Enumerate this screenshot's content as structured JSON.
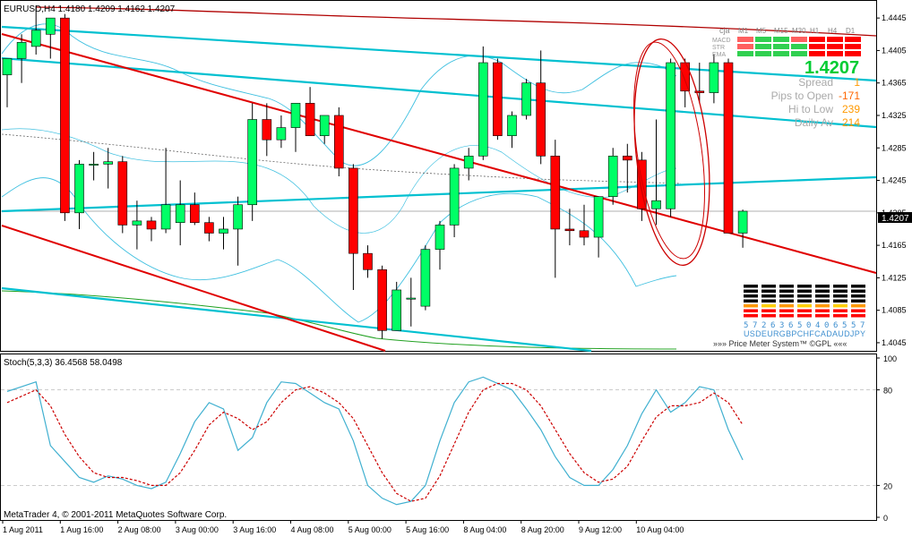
{
  "header": {
    "price_title": "EURUSD,H4  1.4180 1.4209 1.4162 1.4207",
    "stoch_title": "Stoch(5,3,3) 36.4568 58.0498",
    "copyright": "MetaTrader 4, © 2001-2011 MetaQuotes Software Corp."
  },
  "colors": {
    "bull": "#00ff66",
    "bear": "#ff0000",
    "channel": "#e00000",
    "trend": "#00c0d0",
    "band": "#40c0e0",
    "envelope": "#b00000",
    "ma": "#20a020",
    "stoch_main": "#40b0d0",
    "stoch_signal": "#cc0000"
  },
  "price_axis": {
    "ticks": [
      "1.4445",
      "1.4405",
      "1.4365",
      "1.4325",
      "1.4285",
      "1.4245",
      "1.4205",
      "1.4165",
      "1.4125",
      "1.4085",
      "1.4045"
    ],
    "current_price": "1.4207"
  },
  "stoch_axis": {
    "ticks": [
      "100",
      "80",
      "20",
      "0"
    ]
  },
  "time_axis": {
    "labels": [
      "1 Aug 2011",
      "1 Aug 16:00",
      "2 Aug 08:00",
      "3 Aug 00:00",
      "3 Aug 16:00",
      "4 Aug 08:00",
      "5 Aug 00:00",
      "5 Aug 16:00",
      "8 Aug 04:00",
      "8 Aug 20:00",
      "9 Aug 12:00",
      "10 Aug 04:00"
    ]
  },
  "indicator_panel": {
    "label": "cja",
    "timeframes": [
      "M1",
      "M5",
      "M15",
      "M30",
      "H1",
      "H4",
      "D1"
    ],
    "rows": [
      {
        "name": "MACD",
        "colors": [
          "#ff6060",
          "#30d050",
          "#30d050",
          "#ff6060",
          "#ff0000",
          "#ff0000",
          "#ff0000"
        ]
      },
      {
        "name": "STR",
        "colors": [
          "#ff6060",
          "#30d050",
          "#30d050",
          "#30d050",
          "#ff0000",
          "#ff0000",
          "#ff0000"
        ]
      },
      {
        "name": "EMA",
        "colors": [
          "#30d050",
          "#30d050",
          "#30d050",
          "#30d050",
          "#ff0000",
          "#ff0000",
          "#ff0000"
        ]
      }
    ],
    "big_price": "1.4207",
    "stats": [
      {
        "label": "Spread",
        "value": "1"
      },
      {
        "label": "Pips to Open",
        "value": "-171"
      },
      {
        "label": "Hi to Low",
        "value": "239"
      },
      {
        "label": "Daily Av",
        "value": "214"
      }
    ]
  },
  "price_meter": {
    "values": [
      "5",
      "7",
      "2",
      "6",
      "3",
      "6",
      "5",
      "0",
      "4",
      "0",
      "6",
      "5",
      "5",
      "7"
    ],
    "currencies": "USDEURGBPCHFCADAUDJPY",
    "caption": "»»» Price Meter System™ ©GPL «««"
  },
  "chart_data": {
    "type": "candlestick",
    "symbol": "EURUSD",
    "timeframe": "H4",
    "ylim": [
      1.4035,
      1.4465
    ],
    "candles": [
      {
        "o": 1.4375,
        "h": 1.4395,
        "l": 1.4335,
        "c": 1.4395
      },
      {
        "o": 1.4395,
        "h": 1.4425,
        "l": 1.4365,
        "c": 1.4415
      },
      {
        "o": 1.441,
        "h": 1.446,
        "l": 1.44,
        "c": 1.443
      },
      {
        "o": 1.4425,
        "h": 1.4445,
        "l": 1.4395,
        "c": 1.4445
      },
      {
        "o": 1.4445,
        "h": 1.445,
        "l": 1.4195,
        "c": 1.4205
      },
      {
        "o": 1.4205,
        "h": 1.427,
        "l": 1.4185,
        "c": 1.4265
      },
      {
        "o": 1.4265,
        "h": 1.428,
        "l": 1.4245,
        "c": 1.4265
      },
      {
        "o": 1.4265,
        "h": 1.4285,
        "l": 1.4235,
        "c": 1.4268
      },
      {
        "o": 1.4268,
        "h": 1.4275,
        "l": 1.418,
        "c": 1.419
      },
      {
        "o": 1.419,
        "h": 1.422,
        "l": 1.416,
        "c": 1.4195
      },
      {
        "o": 1.4195,
        "h": 1.42,
        "l": 1.417,
        "c": 1.4185
      },
      {
        "o": 1.4185,
        "h": 1.4285,
        "l": 1.418,
        "c": 1.4215
      },
      {
        "o": 1.4193,
        "h": 1.4245,
        "l": 1.4165,
        "c": 1.4215
      },
      {
        "o": 1.4215,
        "h": 1.423,
        "l": 1.419,
        "c": 1.4193
      },
      {
        "o": 1.4193,
        "h": 1.42,
        "l": 1.417,
        "c": 1.418
      },
      {
        "o": 1.418,
        "h": 1.42,
        "l": 1.416,
        "c": 1.4185
      },
      {
        "o": 1.4185,
        "h": 1.4225,
        "l": 1.414,
        "c": 1.4215
      },
      {
        "o": 1.4215,
        "h": 1.434,
        "l": 1.4195,
        "c": 1.432
      },
      {
        "o": 1.432,
        "h": 1.434,
        "l": 1.4275,
        "c": 1.4295
      },
      {
        "o": 1.4295,
        "h": 1.4325,
        "l": 1.4285,
        "c": 1.431
      },
      {
        "o": 1.431,
        "h": 1.434,
        "l": 1.428,
        "c": 1.434
      },
      {
        "o": 1.434,
        "h": 1.436,
        "l": 1.43,
        "c": 1.43
      },
      {
        "o": 1.43,
        "h": 1.4325,
        "l": 1.429,
        "c": 1.4325
      },
      {
        "o": 1.4325,
        "h": 1.4335,
        "l": 1.425,
        "c": 1.426
      },
      {
        "o": 1.426,
        "h": 1.4265,
        "l": 1.411,
        "c": 1.4155
      },
      {
        "o": 1.4155,
        "h": 1.4165,
        "l": 1.4125,
        "c": 1.4135
      },
      {
        "o": 1.4135,
        "h": 1.414,
        "l": 1.405,
        "c": 1.406
      },
      {
        "o": 1.406,
        "h": 1.412,
        "l": 1.406,
        "c": 1.411
      },
      {
        "o": 1.41,
        "h": 1.4125,
        "l": 1.4065,
        "c": 1.41
      },
      {
        "o": 1.409,
        "h": 1.4165,
        "l": 1.4085,
        "c": 1.416
      },
      {
        "o": 1.416,
        "h": 1.4195,
        "l": 1.4135,
        "c": 1.419
      },
      {
        "o": 1.419,
        "h": 1.4265,
        "l": 1.4175,
        "c": 1.426
      },
      {
        "o": 1.426,
        "h": 1.4285,
        "l": 1.4245,
        "c": 1.4275
      },
      {
        "o": 1.4275,
        "h": 1.441,
        "l": 1.427,
        "c": 1.439
      },
      {
        "o": 1.439,
        "h": 1.4395,
        "l": 1.4295,
        "c": 1.43
      },
      {
        "o": 1.43,
        "h": 1.433,
        "l": 1.4285,
        "c": 1.4325
      },
      {
        "o": 1.4325,
        "h": 1.437,
        "l": 1.432,
        "c": 1.4365
      },
      {
        "o": 1.4365,
        "h": 1.4405,
        "l": 1.4265,
        "c": 1.4275
      },
      {
        "o": 1.4275,
        "h": 1.4295,
        "l": 1.4125,
        "c": 1.4185
      },
      {
        "o": 1.4185,
        "h": 1.421,
        "l": 1.4165,
        "c": 1.4183
      },
      {
        "o": 1.4183,
        "h": 1.4215,
        "l": 1.4165,
        "c": 1.4175
      },
      {
        "o": 1.4175,
        "h": 1.4225,
        "l": 1.415,
        "c": 1.4225
      },
      {
        "o": 1.4225,
        "h": 1.4285,
        "l": 1.4215,
        "c": 1.4275
      },
      {
        "o": 1.4275,
        "h": 1.429,
        "l": 1.423,
        "c": 1.427
      },
      {
        "o": 1.427,
        "h": 1.428,
        "l": 1.4195,
        "c": 1.421
      },
      {
        "o": 1.421,
        "h": 1.432,
        "l": 1.419,
        "c": 1.422
      },
      {
        "o": 1.421,
        "h": 1.4395,
        "l": 1.42,
        "c": 1.439
      },
      {
        "o": 1.439,
        "h": 1.4395,
        "l": 1.4335,
        "c": 1.4355
      },
      {
        "o": 1.4355,
        "h": 1.439,
        "l": 1.434,
        "c": 1.4353
      },
      {
        "o": 1.4353,
        "h": 1.44,
        "l": 1.434,
        "c": 1.439
      },
      {
        "o": 1.439,
        "h": 1.4395,
        "l": 1.418,
        "c": 1.418
      },
      {
        "o": 1.418,
        "h": 1.4209,
        "l": 1.4162,
        "c": 1.4207
      }
    ],
    "stoch_main": [
      79,
      82,
      85,
      45,
      35,
      25,
      22,
      26,
      24,
      20,
      18,
      22,
      40,
      60,
      72,
      68,
      42,
      50,
      72,
      85,
      84,
      78,
      72,
      68,
      48,
      20,
      12,
      8,
      10,
      20,
      48,
      72,
      85,
      88,
      84,
      80,
      68,
      55,
      38,
      25,
      20,
      20,
      30,
      45,
      65,
      80,
      66,
      72,
      82,
      80,
      55,
      36
    ],
    "stoch_signal": [
      72,
      76,
      80,
      70,
      52,
      38,
      28,
      25,
      25,
      23,
      20,
      20,
      28,
      42,
      58,
      66,
      62,
      55,
      60,
      72,
      80,
      82,
      78,
      72,
      62,
      45,
      28,
      15,
      10,
      12,
      26,
      46,
      66,
      80,
      84,
      84,
      80,
      70,
      55,
      40,
      28,
      22,
      24,
      32,
      48,
      63,
      70,
      70,
      72,
      78,
      72,
      58
    ]
  }
}
